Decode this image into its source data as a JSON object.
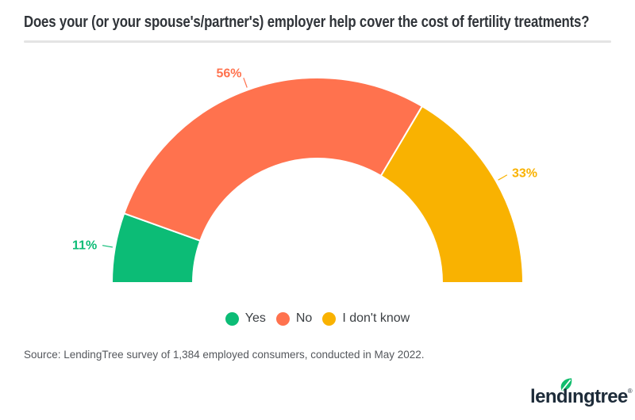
{
  "header": {
    "title": "Does your (or your spouse's/partner's) employer help cover the cost of fertility treatments?"
  },
  "chart_data": {
    "type": "half-donut",
    "title": "Does your (or your spouse's/partner's) employer help cover the cost of fertility treatments?",
    "categories": [
      "Yes",
      "No",
      "I don't know"
    ],
    "values": [
      11,
      56,
      33
    ],
    "labels": [
      "11%",
      "56%",
      "33%"
    ],
    "colors": [
      "#0cbc76",
      "#ff724e",
      "#f9b201"
    ],
    "legend_position": "bottom",
    "start_angle_deg": 180,
    "total_span_deg": 180
  },
  "footer": {
    "source": "Source: LendingTree survey of 1,384 employed consumers, conducted in May 2022.",
    "logo_text": "lendingtree",
    "logo_registered": "®",
    "logo_color": "#1d2b39",
    "leaf_color": "#12bd6e"
  }
}
